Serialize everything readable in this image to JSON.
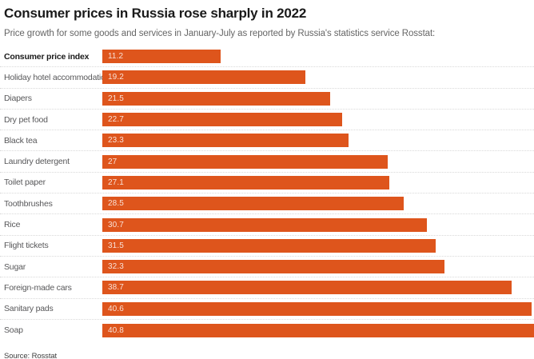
{
  "header": {
    "title": "Consumer prices in Russia rose sharply in 2022",
    "subtitle": "Price growth for some goods and services in January-July as reported by Russia's statistics service Rosstat:"
  },
  "footer": {
    "source_label": "Source: Rosstat"
  },
  "colors": {
    "bar": "#de551c",
    "bar_value_text": "rgba(255,255,255,0.82)",
    "title_text": "#1a1a1a",
    "label_text": "#58585a",
    "separator": "#d9d9d9"
  },
  "chart_data": {
    "type": "bar",
    "orientation": "horizontal",
    "title": "Consumer prices in Russia rose sharply in 2022",
    "subtitle": "Price growth for some goods and services in January-July as reported by Russia's statistics service Rosstat:",
    "source": "Source: Rosstat",
    "xlabel": "",
    "ylabel": "",
    "xlim": [
      0,
      40.8
    ],
    "grid": false,
    "value_labels": "inside-left",
    "emphasized_category": "Consumer price index",
    "categories": [
      "Consumer price index",
      "Holiday hotel accommodation",
      "Diapers",
      "Dry pet food",
      "Black tea",
      "Laundry detergent",
      "Toilet paper",
      "Toothbrushes",
      "Rice",
      "Flight tickets",
      "Sugar",
      "Foreign-made cars",
      "Sanitary pads",
      "Soap"
    ],
    "values": [
      11.2,
      19.2,
      21.5,
      22.7,
      23.3,
      27,
      27.1,
      28.5,
      30.7,
      31.5,
      32.3,
      38.7,
      40.6,
      40.8
    ]
  }
}
